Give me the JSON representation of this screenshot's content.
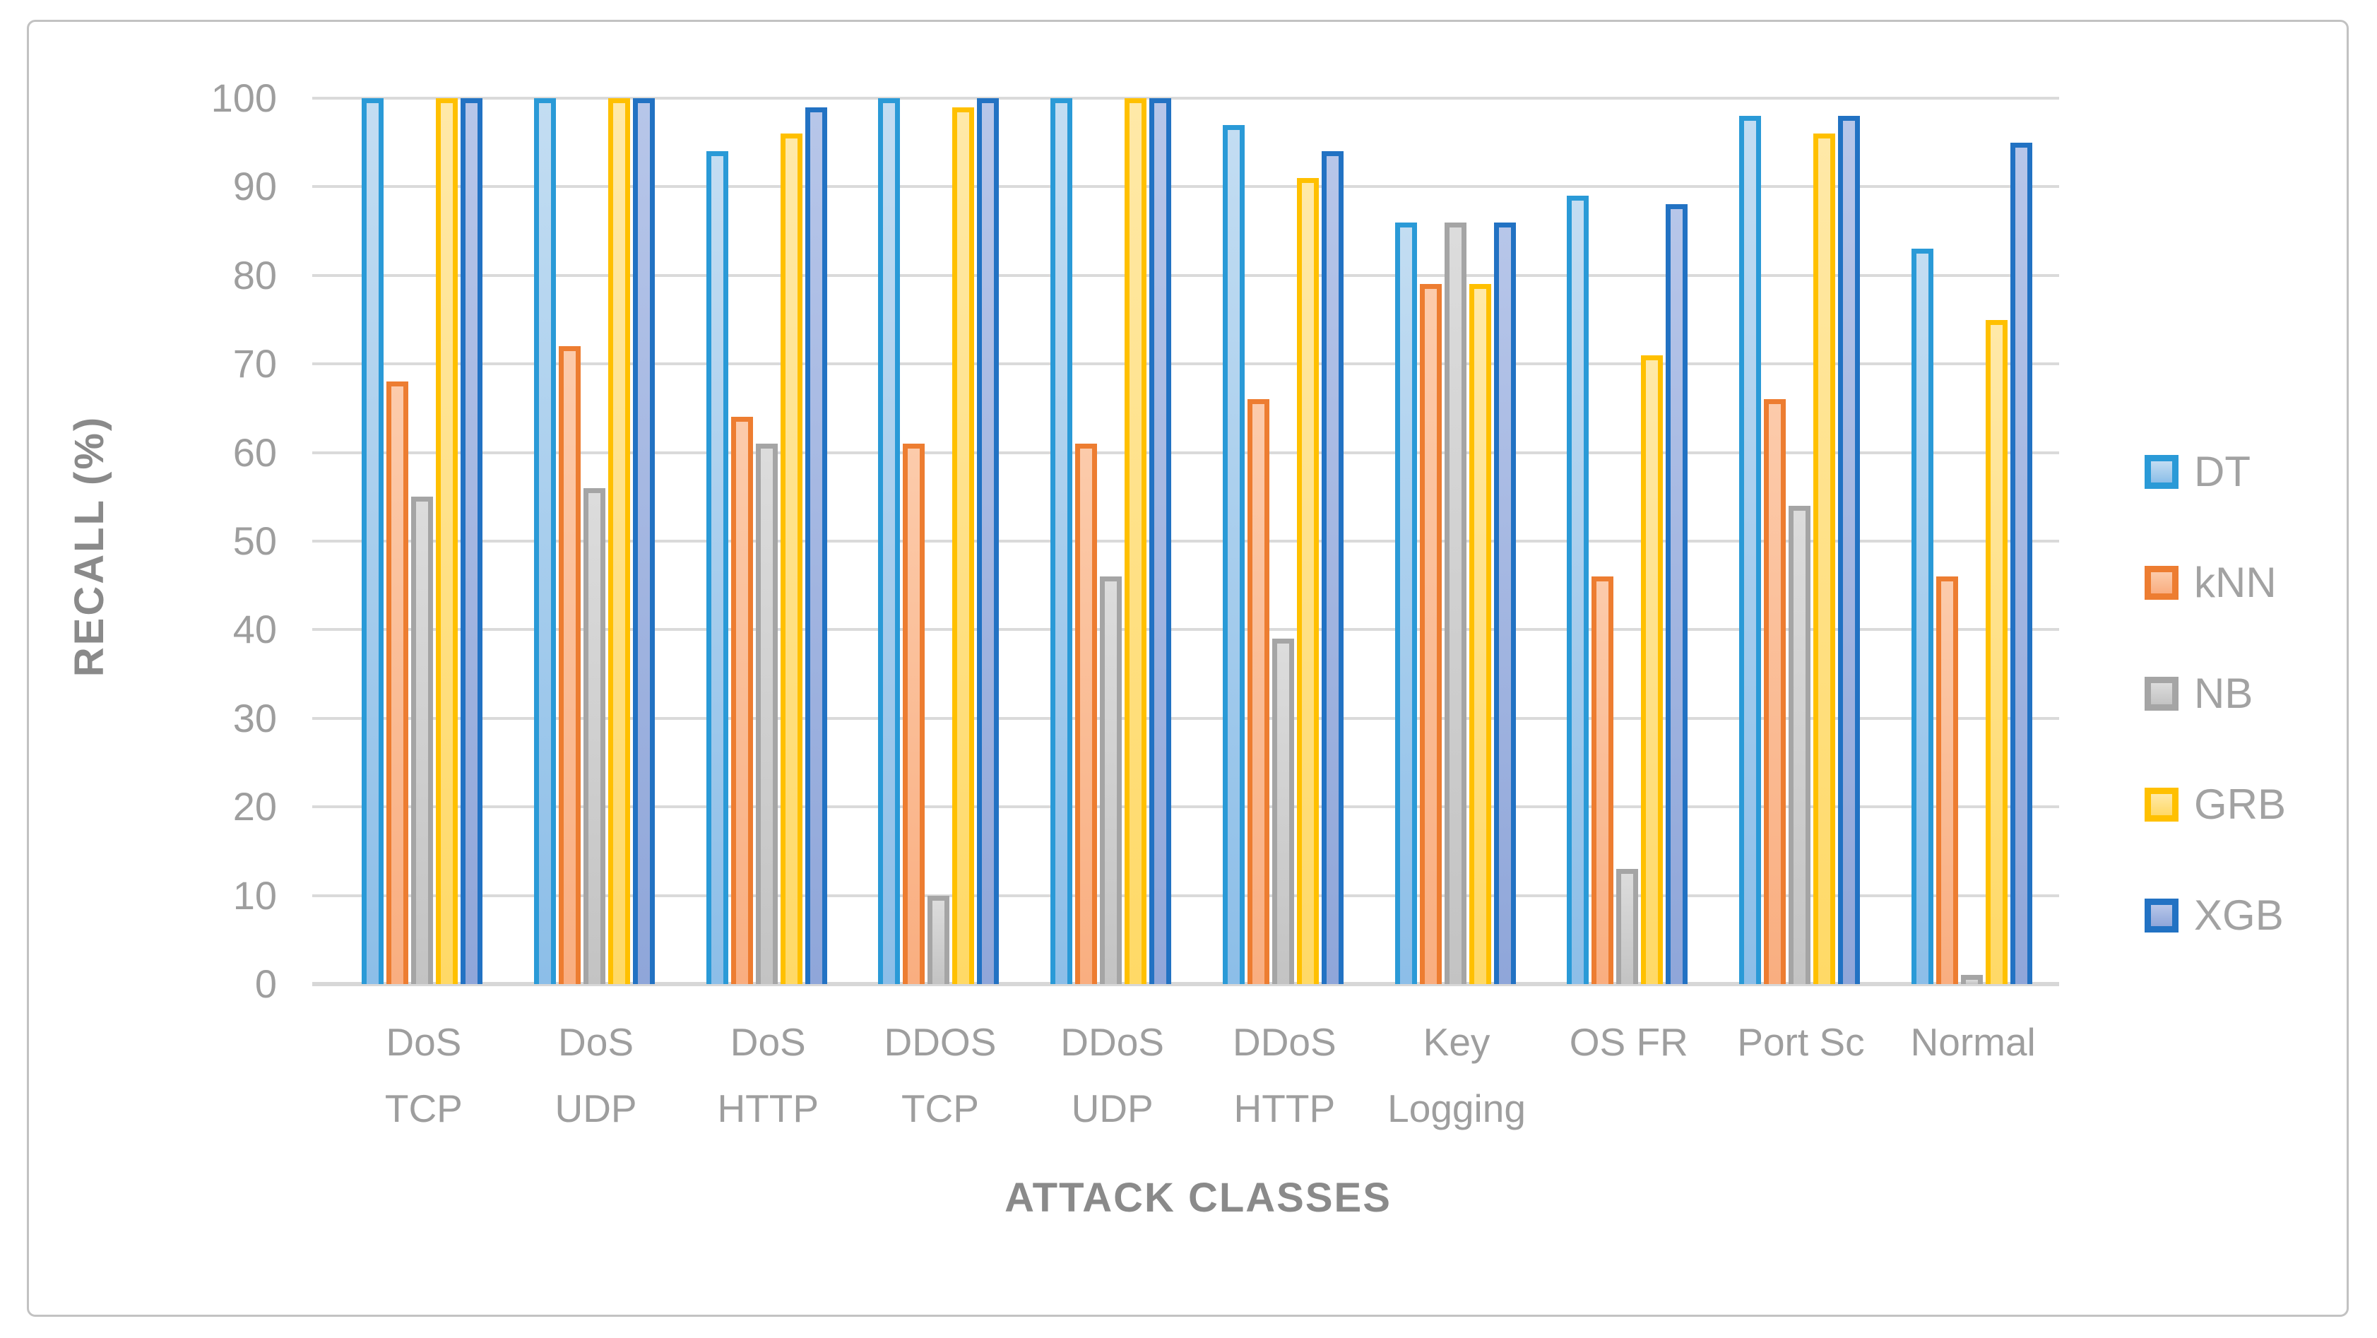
{
  "chart_data": {
    "type": "bar",
    "title": "",
    "xlabel": "ATTACK CLASSES",
    "ylabel": "RECALL  (%)",
    "ylim": [
      0,
      100
    ],
    "ytick_step": 10,
    "grid": true,
    "legend_position": "right",
    "categories": [
      "DoS\nTCP",
      "DoS\nUDP",
      "DoS\nHTTP",
      "DDOS\nTCP",
      "DDoS\nUDP",
      "DDoS\nHTTP",
      "Key\nLogging",
      "OS FR",
      "Port Sc",
      "Normal"
    ],
    "series": [
      {
        "name": "DT",
        "values": [
          100,
          100,
          94,
          100,
          100,
          97,
          86,
          89,
          98,
          83
        ],
        "border_color": "#2a9ad7",
        "fill_top": "#c3ddf2",
        "fill_bottom": "#8cbee8"
      },
      {
        "name": "kNN",
        "values": [
          68,
          72,
          64,
          61,
          61,
          66,
          79,
          46,
          66,
          46
        ],
        "border_color": "#ed7d31",
        "fill_top": "#fccbab",
        "fill_bottom": "#f9ae80"
      },
      {
        "name": "NB",
        "values": [
          55,
          56,
          61,
          10,
          46,
          39,
          86,
          13,
          54,
          1
        ],
        "border_color": "#a5a5a5",
        "fill_top": "#dcdcdc",
        "fill_bottom": "#c3c3c3"
      },
      {
        "name": "GRB",
        "values": [
          100,
          100,
          96,
          99,
          100,
          91,
          79,
          71,
          96,
          75
        ],
        "border_color": "#ffc000",
        "fill_top": "#ffe9a8",
        "fill_bottom": "#ffd966"
      },
      {
        "name": "XGB",
        "values": [
          100,
          100,
          99,
          100,
          100,
          94,
          86,
          88,
          98,
          95
        ],
        "border_color": "#2272c3",
        "fill_top": "#b7c6e9",
        "fill_bottom": "#8fa6d9"
      }
    ]
  },
  "style_colors": {
    "gridline": "#dadada",
    "axis_line": "#d7d7d7",
    "tick_text": "#9e9e9e",
    "axis_title_text": "#8a8a8a",
    "legend_text": "#a2a2a2",
    "figure_border": "#c2c2c2",
    "background": "#ffffff"
  }
}
